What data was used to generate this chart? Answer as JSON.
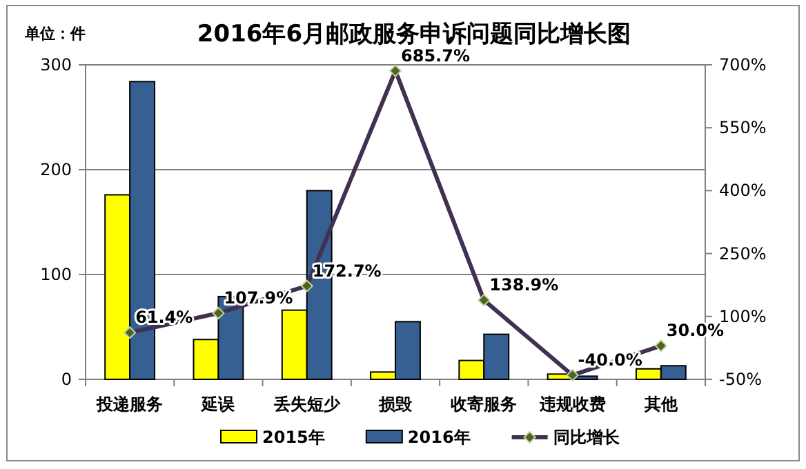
{
  "chart_data": {
    "type": "bar",
    "title": "2016年6月邮政服务申诉问题同比增长图",
    "annotations": [
      "单位：件"
    ],
    "categories": [
      "投递服务",
      "延误",
      "丢失短少",
      "损毁",
      "收寄服务",
      "违规收费",
      "其他"
    ],
    "series": [
      {
        "name": "2015年",
        "color": "#ffff00",
        "values": [
          176,
          38,
          66,
          7,
          18,
          5,
          10
        ]
      },
      {
        "name": "2016年",
        "color": "#366092",
        "values": [
          284,
          79,
          180,
          55,
          43,
          3,
          13
        ]
      },
      {
        "name": "同比增长",
        "type": "line",
        "axis": "y2",
        "color": "#403151",
        "marker": "diamond",
        "values": [
          61.4,
          107.9,
          172.7,
          685.7,
          138.9,
          -40.0,
          30.0
        ],
        "value_labels": [
          "61.4%",
          "107.9%",
          "172.7%",
          "685.7%",
          "138.9%",
          "-40.0%",
          "30.0%"
        ]
      }
    ],
    "ylim": [
      0,
      300
    ],
    "yticks": [
      0,
      100,
      200,
      300
    ],
    "y2lim": [
      -50,
      700
    ],
    "y2ticks": [
      {
        "value": -50,
        "label": "-50%"
      },
      {
        "value": 100,
        "label": "100%"
      },
      {
        "value": 250,
        "label": "250%"
      },
      {
        "value": 400,
        "label": "400%"
      },
      {
        "value": 550,
        "label": "550%"
      },
      {
        "value": 700,
        "label": "700%"
      }
    ],
    "grid": "y",
    "legend": "bottom"
  }
}
